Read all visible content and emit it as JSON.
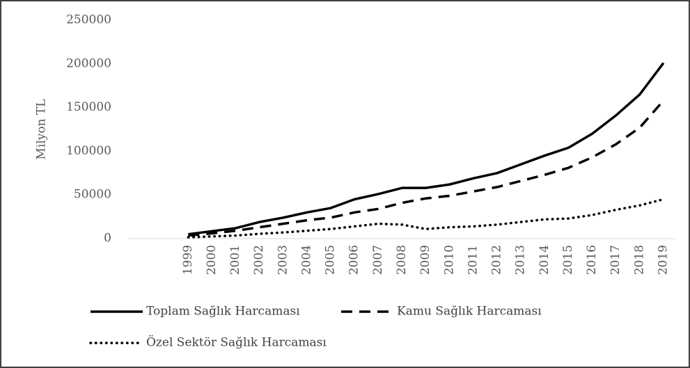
{
  "chart_data": {
    "type": "line",
    "y_label": "Milyon TL",
    "categories": [
      null,
      null,
      "1999",
      "2000",
      "2001",
      "2002",
      "2003",
      "2004",
      "2005",
      "2006",
      "2007",
      "2008",
      "2009",
      "2010",
      "2011",
      "2012",
      "2013",
      "2014",
      "2015",
      "2016",
      "2017",
      "2018",
      "2019"
    ],
    "series": [
      {
        "name": "Toplam Sağlık Harcaması",
        "color": "#000000",
        "style": "solid",
        "values": [
          null,
          null,
          5000,
          8500,
          12000,
          19000,
          24000,
          30000,
          35000,
          45000,
          51000,
          58000,
          58000,
          62000,
          69000,
          75000,
          85000,
          95000,
          104000,
          120000,
          141000,
          165000,
          201000
        ]
      },
      {
        "name": "Kamu Sağlık Harcaması",
        "color": "#000000",
        "style": "dashed",
        "values": [
          null,
          null,
          3500,
          6000,
          9000,
          13000,
          17000,
          21000,
          24000,
          30000,
          34000,
          41000,
          46000,
          49000,
          54000,
          59000,
          66000,
          73000,
          81000,
          93000,
          108000,
          127000,
          158000
        ]
      },
      {
        "name": "Özel Sektör Sağlık Harcaması",
        "color": "#000000",
        "style": "dotted",
        "values": [
          null,
          null,
          1500,
          2500,
          3500,
          5500,
          7000,
          9000,
          11000,
          14000,
          17000,
          16000,
          11000,
          13000,
          14000,
          16000,
          19000,
          22000,
          23000,
          27000,
          33000,
          38000,
          45000
        ]
      }
    ],
    "ylim": [
      0,
      250000
    ],
    "yticks": [
      0,
      50000,
      100000,
      150000,
      200000,
      250000
    ],
    "grid": false,
    "legend": "bottom"
  }
}
